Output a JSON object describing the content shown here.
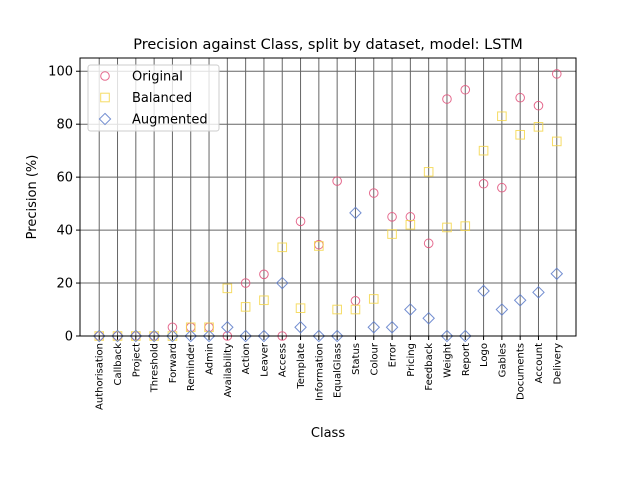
{
  "chart_data": {
    "type": "scatter",
    "title": "Precision against Class, split by dataset, model: LSTM",
    "xlabel": "Class",
    "ylabel": "Precision (%)",
    "ylim": [
      0,
      105
    ],
    "yticks": [
      0,
      20,
      40,
      60,
      80,
      100
    ],
    "grid": true,
    "legend_position": "top-left",
    "categories": [
      "Authorisation",
      "Callback",
      "Project",
      "Threshold",
      "Forward",
      "Reminder",
      "Admin",
      "Availability",
      "Action",
      "Leaver",
      "Access",
      "Template",
      "Information",
      "EqualGlass",
      "Status",
      "Colour",
      "Error",
      "Pricing",
      "Feedback",
      "Weight",
      "Report",
      "Logo",
      "Gables",
      "Documents",
      "Account",
      "Delivery"
    ],
    "series": [
      {
        "name": "Original",
        "marker": "circle",
        "color": "#e0507a",
        "values": [
          0,
          0,
          0,
          0,
          3.3,
          3.3,
          3.3,
          0,
          20,
          23.3,
          0,
          43.3,
          34.5,
          58.5,
          13.3,
          54,
          45,
          45,
          35,
          89.5,
          93,
          57.5,
          56,
          90,
          87,
          99
        ]
      },
      {
        "name": "Balanced",
        "marker": "square",
        "color": "#f5d64a",
        "values": [
          0,
          0,
          0,
          0,
          0,
          3.3,
          3.3,
          18,
          11,
          13.5,
          33.5,
          10.5,
          34,
          10,
          10,
          14,
          38.5,
          42,
          62,
          41,
          41.5,
          70,
          83,
          76,
          79,
          73.5
        ]
      },
      {
        "name": "Augmented",
        "marker": "diamond",
        "color": "#5b7ac9",
        "values": [
          0,
          0,
          0,
          0,
          0,
          0,
          0,
          3.3,
          0,
          0,
          20,
          3.3,
          0,
          0,
          46.5,
          3.3,
          3.3,
          10,
          6.7,
          0,
          0,
          17,
          10,
          13.5,
          16.5,
          23.5
        ]
      }
    ]
  }
}
